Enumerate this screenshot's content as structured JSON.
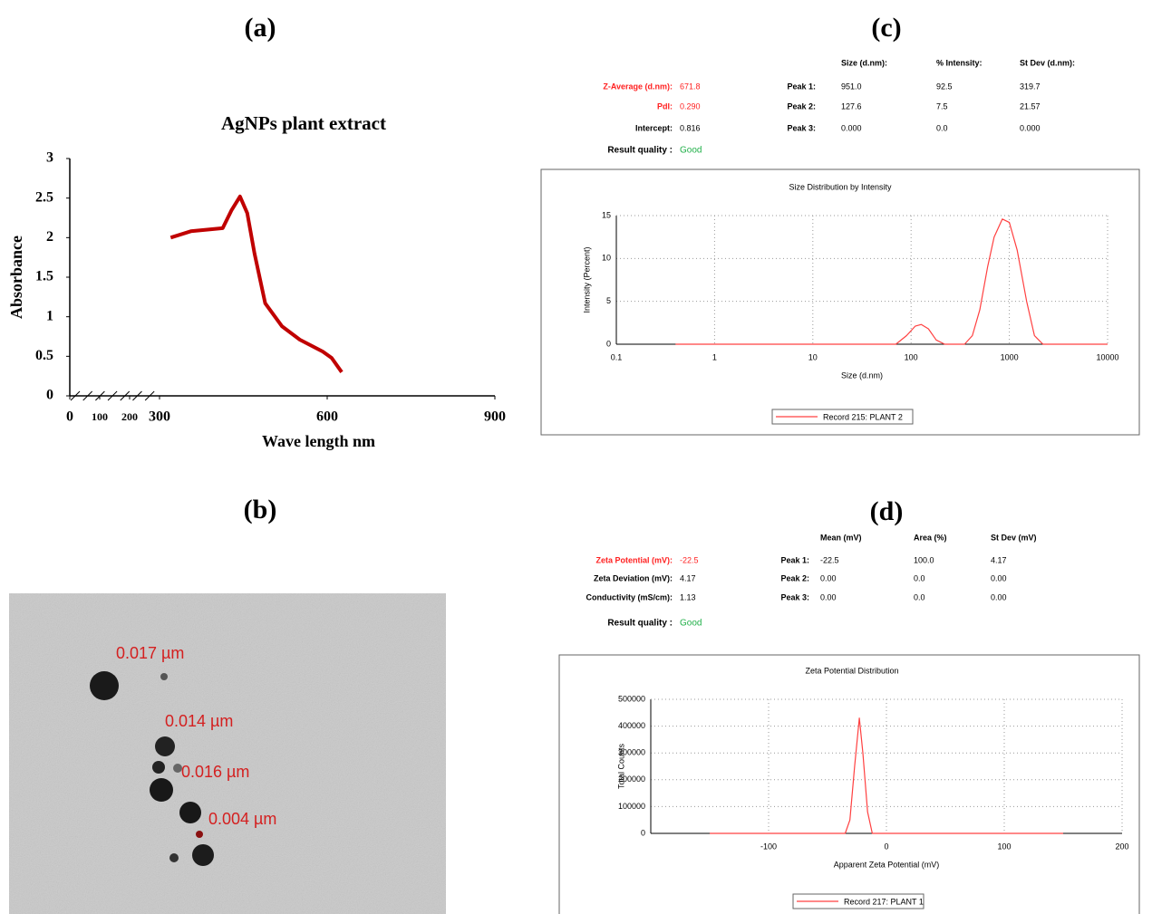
{
  "panel_labels": [
    "(a)",
    "(b)",
    "(c)",
    "(d)"
  ],
  "chart_data": [
    {
      "type": "line",
      "title": "AgNPs plant   extract",
      "x_label": "Wave  length nm",
      "y_label": "Absorbance",
      "x": [
        320,
        356,
        413,
        429,
        444,
        457,
        470,
        489,
        519,
        551,
        592,
        608,
        626
      ],
      "values": [
        2.0,
        2.08,
        2.12,
        2.35,
        2.52,
        2.31,
        1.8,
        1.17,
        0.88,
        0.71,
        0.56,
        0.48,
        0.3
      ],
      "color": "#c00000",
      "xlim": [
        0,
        900
      ],
      "x_break": [
        0,
        300
      ],
      "xticks": [
        0,
        100,
        200,
        300,
        600,
        900
      ],
      "ylim": [
        0,
        3
      ],
      "yticks": [
        0,
        0.5,
        1,
        1.5,
        2,
        2.5,
        3
      ],
      "grid": false
    },
    {
      "type": "line",
      "title": "Size Distribution by Intensity",
      "x_label": "Size (d.nm)",
      "y_label": "Intensity (Percent)",
      "x_scale": "log",
      "x": [
        0.4,
        50,
        70,
        90,
        110,
        127,
        150,
        180,
        220,
        350,
        420,
        500,
        600,
        700,
        850,
        1000,
        1200,
        1500,
        1800,
        2200,
        10000
      ],
      "series": [
        {
          "name": "Record 215: PLANT 2",
          "color": "#ff4040",
          "values": [
            0,
            0,
            0,
            1,
            2.1,
            2.3,
            1.8,
            0.5,
            0,
            0,
            1,
            4,
            9,
            12.5,
            14.6,
            14.2,
            11,
            5,
            1,
            0,
            0
          ]
        }
      ],
      "xlim": [
        0.1,
        10000
      ],
      "xticks": [
        0.1,
        1,
        10,
        100,
        1000,
        10000
      ],
      "ylim": [
        0,
        15
      ],
      "yticks": [
        0,
        5,
        10,
        15
      ],
      "grid": true
    },
    {
      "type": "line",
      "title": "Zeta Potential Distribution",
      "x_label": "Apparent Zeta Potential (mV)",
      "y_label": "Total Counts",
      "x": [
        -150,
        -35,
        -31,
        -27,
        -23,
        -20,
        -16,
        -12,
        150
      ],
      "series": [
        {
          "name": "Record 217: PLANT 1",
          "color": "#ff4040",
          "values": [
            0,
            0,
            50000,
            250000,
            430000,
            300000,
            80000,
            0,
            0
          ]
        }
      ],
      "xlim": [
        -200,
        200
      ],
      "xticks": [
        -100,
        0,
        100,
        200
      ],
      "ylim": [
        0,
        500000
      ],
      "yticks": [
        0,
        100000,
        200000,
        300000,
        400000,
        500000
      ],
      "grid": true
    }
  ],
  "size_results": {
    "header": [
      "Size (d.nm):",
      "% Intensity:",
      "St Dev (d.nm):"
    ],
    "summary": [
      {
        "label": "Z-Average (d.nm):",
        "value": "671.8",
        "color": "#ff2020"
      },
      {
        "label": "PdI:",
        "value": "0.290",
        "color": "#ff2020"
      },
      {
        "label": "Intercept:",
        "value": "0.816",
        "color": "#000000"
      }
    ],
    "quality": {
      "label": "Result quality :",
      "value": "Good"
    },
    "peaks": [
      [
        "Peak 1:",
        "951.0",
        "92.5",
        "319.7"
      ],
      [
        "Peak 2:",
        "127.6",
        "7.5",
        "21.57"
      ],
      [
        "Peak 3:",
        "0.000",
        "0.0",
        "0.000"
      ]
    ]
  },
  "zeta_results": {
    "header": [
      "Mean (mV)",
      "Area (%)",
      "St Dev (mV)"
    ],
    "summary": [
      {
        "label": "Zeta Potential (mV):",
        "value": "-22.5",
        "color": "#ff2020"
      },
      {
        "label": "Zeta Deviation (mV):",
        "value": "4.17",
        "color": "#000000"
      },
      {
        "label": "Conductivity (mS/cm):",
        "value": "1.13",
        "color": "#000000"
      }
    ],
    "quality": {
      "label": "Result quality :",
      "value": "Good"
    },
    "peaks": [
      [
        "Peak 1:",
        "-22.5",
        "100.0",
        "4.17"
      ],
      [
        "Peak 2:",
        "0.00",
        "0.0",
        "0.00"
      ],
      [
        "Peak 3:",
        "0.00",
        "0.0",
        "0.00"
      ]
    ]
  },
  "tem_image": {
    "labels": [
      "0.017 µm",
      "0.014 µm",
      "0.016 µm",
      "0.004 µm"
    ]
  }
}
